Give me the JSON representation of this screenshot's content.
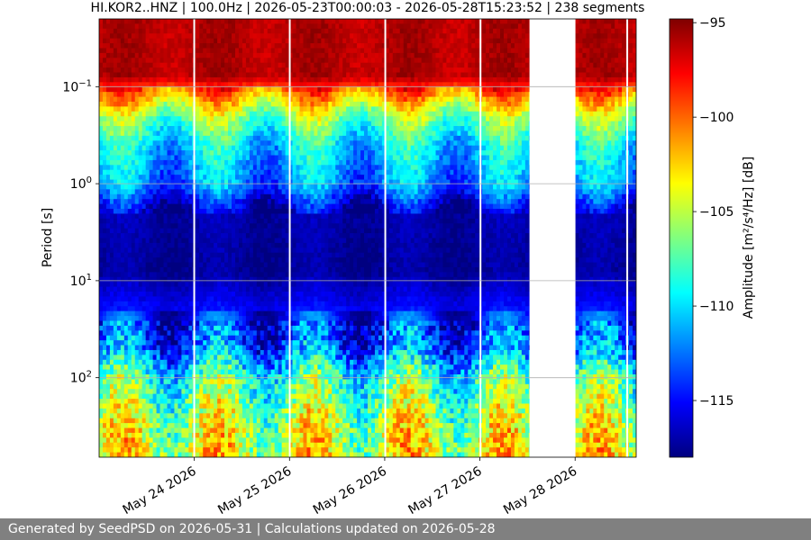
{
  "chart_data": {
    "type": "heatmap",
    "title": "HI.KOR2..HNZ | 100.0Hz | 2026-05-23T00:00:03 - 2026-05-28T15:23:52 | 238 segments",
    "ylabel": "Period [s]",
    "y_scale": "log",
    "y_inverted": true,
    "ylim": [
      0.02,
      660
    ],
    "y_ticks": [
      {
        "value": 0.1,
        "label": "10",
        "exp": "−1"
      },
      {
        "value": 1,
        "label": "10",
        "exp": "0"
      },
      {
        "value": 10,
        "label": "10",
        "exp": "1"
      },
      {
        "value": 100,
        "label": "10",
        "exp": "2"
      }
    ],
    "xlim": [
      "2026-05-23T00:00:03",
      "2026-05-28T15:23:52"
    ],
    "x_ticks": [
      {
        "date": "2026-05-24",
        "label": "May 24 2026"
      },
      {
        "date": "2026-05-25",
        "label": "May 25 2026"
      },
      {
        "date": "2026-05-26",
        "label": "May 26 2026"
      },
      {
        "date": "2026-05-27",
        "label": "May 27 2026"
      },
      {
        "date": "2026-05-28",
        "label": "May 28 2026"
      }
    ],
    "data_gaps": [
      [
        "2026-05-23T23:45:00",
        "2026-05-24T00:00:00"
      ],
      [
        "2026-05-24T23:50:00",
        "2026-05-25T00:05:00"
      ],
      [
        "2026-05-25T23:55:00",
        "2026-05-26T00:05:00"
      ],
      [
        "2026-05-26T23:55:00",
        "2026-05-27T00:05:00"
      ],
      [
        "2026-05-27T12:30:00",
        "2026-05-28T00:05:00"
      ],
      [
        "2026-05-28T12:55:00",
        "2026-05-28T13:10:00"
      ]
    ],
    "colorbar": {
      "label": "Amplitude [m²/s⁴/Hz] [dB]",
      "colormap": "jet",
      "range": [
        -118.0,
        -94.8
      ],
      "ticks": [
        -95,
        -100,
        -105,
        -110,
        -115
      ]
    },
    "amplitude_profile_db": [
      {
        "period": 0.02,
        "db": -96
      },
      {
        "period": 0.08,
        "db": -96
      },
      {
        "period": 0.12,
        "db": -101
      },
      {
        "period": 0.2,
        "db": -106
      },
      {
        "period": 0.4,
        "db": -110
      },
      {
        "period": 1.0,
        "db": -112
      },
      {
        "period": 2.0,
        "db": -117
      },
      {
        "period": 8.0,
        "db": -117.5
      },
      {
        "period": 20,
        "db": -115
      },
      {
        "period": 50,
        "db": -113
      },
      {
        "period": 100,
        "db": -108
      },
      {
        "period": 300,
        "db": -105
      },
      {
        "period": 660,
        "db": -104
      }
    ],
    "grid": true
  },
  "footer": {
    "text": "Generated by SeedPSD on 2026-05-31 | Calculations updated on 2026-05-28"
  }
}
